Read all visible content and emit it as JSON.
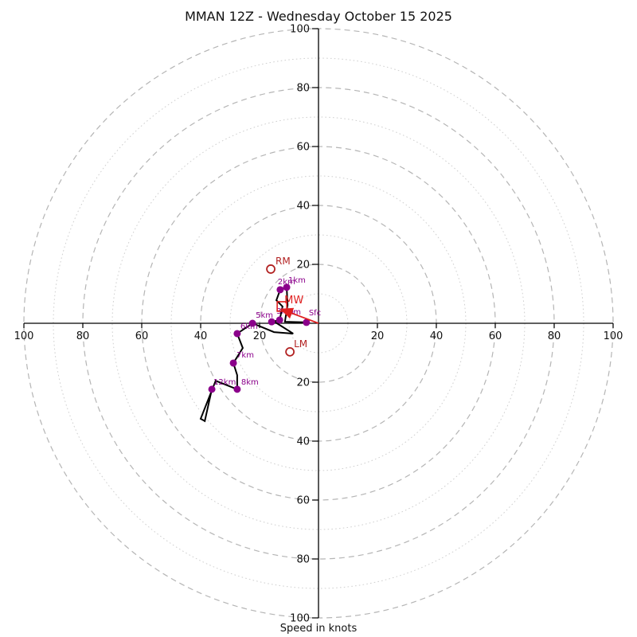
{
  "title": "MMAN 12Z - Wednesday October 15 2025",
  "xlabel": "Speed in knots",
  "chart_data": {
    "type": "line",
    "title": "MMAN 12Z - Wednesday October 15 2025",
    "xlabel": "Speed in knots",
    "units": "knots",
    "axis_range": [
      -100,
      100
    ],
    "rings_dashed": [
      20,
      40,
      60,
      80,
      100
    ],
    "rings_dotted": [
      10,
      30,
      50,
      70,
      90
    ],
    "tick_values": [
      20,
      40,
      60,
      80,
      100
    ],
    "legend_position": "none",
    "grid": true,
    "trace_uv": [
      [
        -4.1,
        0.3
      ],
      [
        -11.4,
        0.5
      ],
      [
        -10.5,
        6.2
      ],
      [
        -10.8,
        12.2
      ],
      [
        -13.0,
        11.4
      ],
      [
        -14.3,
        7.8
      ],
      [
        -12.2,
        5.7
      ],
      [
        -13.2,
        1.1
      ],
      [
        -15.9,
        0.5
      ],
      [
        -14.6,
        0.3
      ],
      [
        -8.6,
        -3.5
      ],
      [
        -15.1,
        -3.0
      ],
      [
        -22.4,
        0.0
      ],
      [
        -27.6,
        -3.5
      ],
      [
        -25.7,
        -8.4
      ],
      [
        -28.9,
        -13.5
      ],
      [
        -27.6,
        -17.6
      ],
      [
        -27.6,
        -22.4
      ],
      [
        -34.9,
        -19.5
      ],
      [
        -40.0,
        -32.4
      ],
      [
        -38.6,
        -33.2
      ],
      [
        -36.2,
        -22.4
      ]
    ],
    "levels": [
      {
        "label": "Sfc",
        "u": -4.1,
        "v": 0.3,
        "label_offset": [
          3,
          -9
        ]
      },
      {
        "label": "1km",
        "u": -10.8,
        "v": 12.2,
        "label_offset": [
          2,
          -6
        ]
      },
      {
        "label": "2km",
        "u": -13.0,
        "v": 11.4,
        "label_offset": [
          -3,
          -7
        ]
      },
      {
        "label": "3km",
        "u": -13.2,
        "v": 1.1,
        "label_offset": [
          -4,
          -8
        ]
      },
      {
        "label": "4km",
        "u": -15.9,
        "v": 0.5,
        "label_offset": [
          15,
          -9
        ]
      },
      {
        "label": "5km",
        "u": -22.4,
        "v": 0.0,
        "label_offset": [
          4,
          -7
        ]
      },
      {
        "label": "6km",
        "u": -27.6,
        "v": -3.5,
        "label_offset": [
          4,
          -6
        ]
      },
      {
        "label": "7km",
        "u": -28.9,
        "v": -13.5,
        "label_offset": [
          4,
          -7
        ]
      },
      {
        "label": "8km",
        "u": -27.6,
        "v": -22.4,
        "label_offset": [
          5,
          -6
        ]
      },
      {
        "label": "12km",
        "u": -36.2,
        "v": -22.4,
        "label_offset": [
          2,
          -6
        ]
      }
    ],
    "storm_motions": [
      {
        "label": "RM",
        "u": -16.2,
        "v": 18.4,
        "label_offset": [
          6,
          -6
        ]
      },
      {
        "label": "LM",
        "u": -9.7,
        "v": -9.7,
        "label_offset": [
          5,
          -6
        ]
      }
    ],
    "mean_wind": {
      "label": "MW",
      "u": -12.4,
      "v": 5.7,
      "label_offset": [
        3,
        -4
      ]
    },
    "mean_wind_arrow_to": [
      -12.2,
      4.6
    ],
    "colors": {
      "trace": "#000000",
      "levels": "#8B008B",
      "storm_motion": "#B22222",
      "mean_wind": "#E02020",
      "grid_dashed": "#b5b5b5",
      "grid_dotted": "#cfcfcf",
      "axis": "#000000"
    }
  }
}
